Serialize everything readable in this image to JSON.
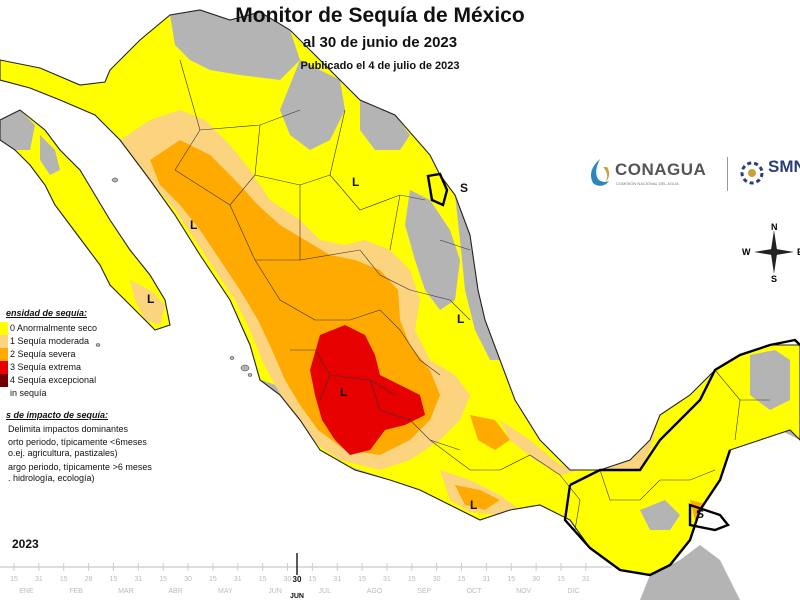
{
  "title": "Monitor de Sequía de México",
  "subtitle": "al 30 de junio de 2023",
  "published": "Publicado el 4 de julio de 2023",
  "logos": {
    "conagua": "CONAGUA",
    "conagua_sub": "COMISIÓN NACIONAL DEL AGUA",
    "smn": "SMN"
  },
  "compass": {
    "n": "N",
    "s": "S",
    "e": "E",
    "w": "W"
  },
  "legend": {
    "heading": "ensidad de sequía:",
    "items": [
      {
        "label": "0 Anormalmente seco",
        "color": "#ffff00"
      },
      {
        "label": "1 Sequía moderada",
        "color": "#fcd37f"
      },
      {
        "label": "2 Sequía severa",
        "color": "#ffaa00"
      },
      {
        "label": "3 Sequía extrema",
        "color": "#e60000"
      },
      {
        "label": "4 Sequía excepcional",
        "color": "#730000"
      },
      {
        "label": "in sequía",
        "color": "#ffffff"
      }
    ]
  },
  "impact": {
    "heading": "s de impacto de sequía:",
    "lines": [
      "Delimita impactos dominantes",
      "orto periodo, típicamente <6meses",
      "o.ej. agricultura, pastizales)",
      "argo periodo, típicamente >6 meses",
      ". hidrología, ecología)"
    ]
  },
  "map_labels": {
    "l_baja": "L",
    "l_coahuila": "L",
    "s_tamaulipas": "S",
    "l_centro": "L",
    "l_sinaloa": "L",
    "l_slp": "L",
    "l_guerrero": "L",
    "s_chiapas": "S"
  },
  "timeline": {
    "year": "2023",
    "months": [
      "ENE",
      "FEB",
      "MAR",
      "ABR",
      "MAY",
      "JUN",
      "JUL",
      "AGO",
      "SEP",
      "OCT",
      "NOV",
      "DIC"
    ],
    "ticks": [
      "15",
      "31",
      "15",
      "28",
      "15",
      "31",
      "15",
      "30",
      "15",
      "31",
      "15",
      "30",
      "15",
      "31",
      "15",
      "31",
      "15",
      "30",
      "15",
      "31",
      "15",
      "30",
      "15",
      "31"
    ],
    "current_day": "30",
    "current_month": "JUN"
  },
  "colors": {
    "land_gray": "#b4b4b4",
    "d0": "#ffff00",
    "d1": "#fcd37f",
    "d2": "#ffaa00",
    "d3": "#e60000",
    "water": "#ffffff"
  }
}
